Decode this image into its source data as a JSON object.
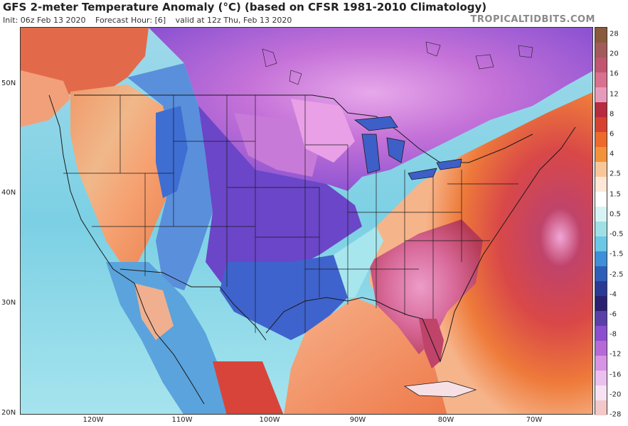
{
  "header": {
    "title": "GFS 2-meter Temperature Anomaly (°C) (based on CFSR 1981-2010 Climatology)",
    "init": "Init: 06z Feb 13 2020",
    "forecast_hour": "Forecast Hour: [6]",
    "valid": "valid at 12z Thu, Feb 13 2020",
    "brand": "TROPICALTIDBITS.COM"
  },
  "map": {
    "lat_labels": [
      "50N",
      "40N",
      "30N",
      "20N"
    ],
    "lon_labels": [
      "120W",
      "110W",
      "100W",
      "90W",
      "80W",
      "70W"
    ],
    "colors": {
      "ocean_warm": "#f49a7a",
      "ocean_neutral": "#b8e3ef",
      "cold_deep": "#3b5cc8",
      "cold_purple": "#8a4fcf",
      "cold_magenta": "#c46ad6",
      "cold_pink": "#e39be6",
      "warm_red": "#d94848",
      "warm_dark": "#b5304f",
      "warm_pink": "#e78fb8",
      "west_orange": "#f0a070",
      "west_blue": "#6a9be0",
      "boundary": "#1a1a1a"
    }
  },
  "colorbar": {
    "ticks": [
      "28",
      "20",
      "16",
      "12",
      "8",
      "6",
      "4",
      "2.5",
      "1.5",
      "0.5",
      "-0.5",
      "-1.5",
      "-2.5",
      "-4",
      "-6",
      "-8",
      "-12",
      "-16",
      "-20",
      "-28"
    ],
    "colors": [
      "#8a5a3c",
      "#a35a5a",
      "#c0566f",
      "#d9708f",
      "#e79bbb",
      "#b82a3e",
      "#d6422f",
      "#ee6a2a",
      "#f2923a",
      "#f7c79a",
      "#fde8d8",
      "#ffffff",
      "#d8f3f3",
      "#9fe0e6",
      "#6bc7e5",
      "#3e8fd8",
      "#2d5fb8",
      "#2a3a94",
      "#2a2070",
      "#5a3fa8",
      "#8a4fcf",
      "#b56ad8",
      "#d894e4",
      "#ecc0ee",
      "#f7e2f4",
      "#f3c8c8"
    ]
  }
}
